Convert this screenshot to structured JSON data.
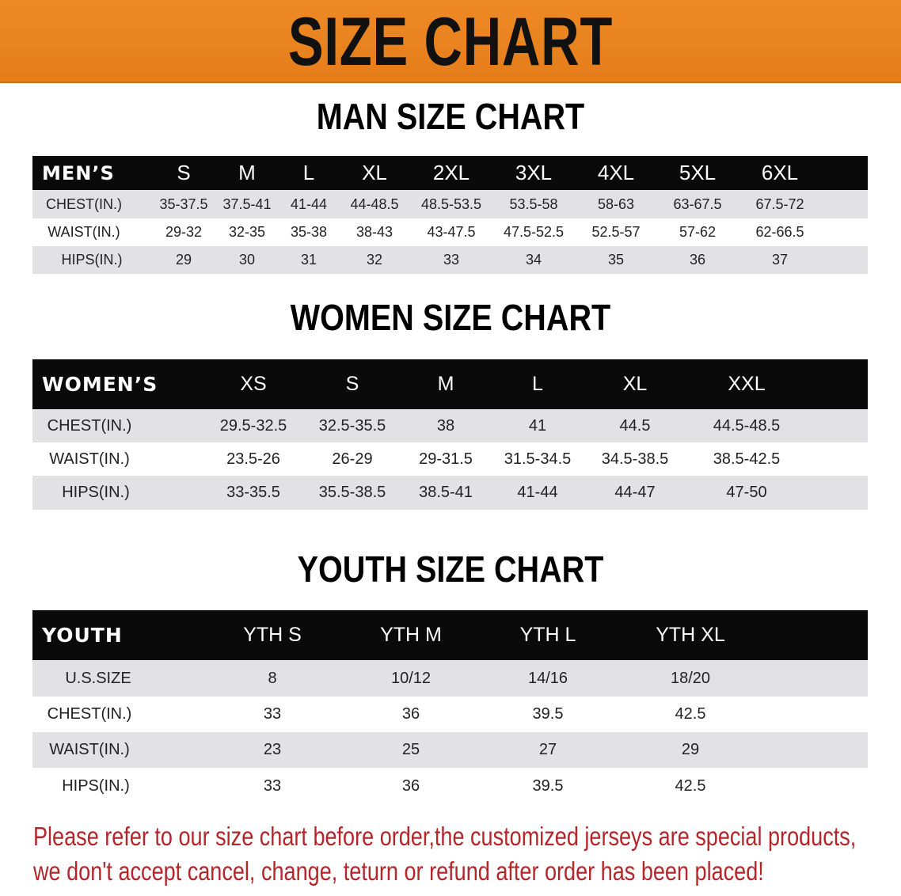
{
  "banner": {
    "title": "SIZE CHART",
    "color": "#e8821f"
  },
  "men": {
    "title": "MAN SIZE CHART",
    "header": [
      "MEN’S",
      "S",
      "M",
      "L",
      "XL",
      "2XL",
      "3XL",
      "4XL",
      "5XL",
      "6XL"
    ],
    "rows": [
      [
        "CHEST(IN.)",
        "35-37.5",
        "37.5-41",
        "41-44",
        "44-48.5",
        "48.5-53.5",
        "53.5-58",
        "58-63",
        "63-67.5",
        "67.5-72"
      ],
      [
        "WAIST(IN.)",
        "29-32",
        "32-35",
        "35-38",
        "38-43",
        "43-47.5",
        "47.5-52.5",
        "52.5-57",
        "57-62",
        "62-66.5"
      ],
      [
        "HIPS(IN.)",
        "29",
        "30",
        "31",
        "32",
        "33",
        "34",
        "35",
        "36",
        "37"
      ]
    ]
  },
  "women": {
    "title": "WOMEN SIZE CHART",
    "header": [
      "WOMEN’S",
      "XS",
      "S",
      "M",
      "L",
      "XL",
      "XXL"
    ],
    "rows": [
      [
        "CHEST(IN.)",
        "29.5-32.5",
        "32.5-35.5",
        "38",
        "41",
        "44.5",
        "44.5-48.5"
      ],
      [
        "WAIST(IN.)",
        "23.5-26",
        "26-29",
        "29-31.5",
        "31.5-34.5",
        "34.5-38.5",
        "38.5-42.5"
      ],
      [
        "HIPS(IN.)",
        "33-35.5",
        "35.5-38.5",
        "38.5-41",
        "41-44",
        "44-47",
        "47-50"
      ]
    ]
  },
  "youth": {
    "title": "YOUTH SIZE CHART",
    "header": [
      "YOUTH",
      "YTH S",
      "YTH M",
      "YTH L",
      "YTH XL"
    ],
    "rows": [
      [
        "U.S.SIZE",
        "8",
        "10/12",
        "14/16",
        "18/20"
      ],
      [
        "CHEST(IN.)",
        "33",
        "36",
        "39.5",
        "42.5"
      ],
      [
        "WAIST(IN.)",
        "23",
        "25",
        "27",
        "29"
      ],
      [
        "HIPS(IN.)",
        "33",
        "36",
        "39.5",
        "42.5"
      ]
    ]
  },
  "note": {
    "line1": "Please refer to our size chart before order,the customized jerseys are special products,",
    "line2": "we don't accept cancel, change, teturn or refund after order has been placed!",
    "color": "#b5262a"
  }
}
